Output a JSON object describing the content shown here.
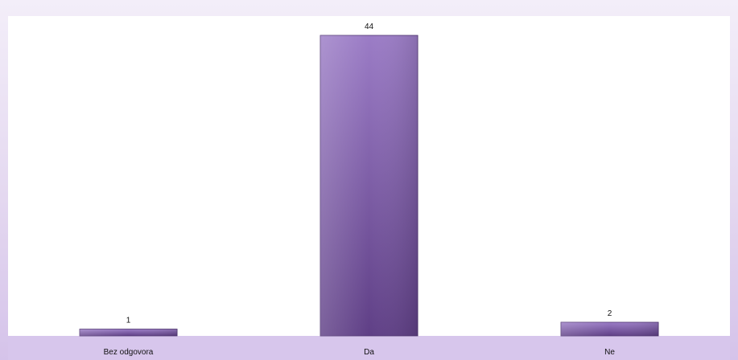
{
  "chart_data": {
    "type": "bar",
    "categories": [
      "Bez odgovora",
      "Da",
      "Ne"
    ],
    "values": [
      1,
      44,
      2
    ],
    "data_labels": [
      "1",
      "44",
      "2"
    ],
    "ylim": [
      0,
      48
    ],
    "grid": false,
    "legend": "none",
    "bar_color": "#7e5aa6",
    "bar_color_light": "#9b7cc6",
    "plot_background": "#ffffff",
    "page_background": "#e4d8f0",
    "axis_band_color": "#d7c6ec"
  }
}
